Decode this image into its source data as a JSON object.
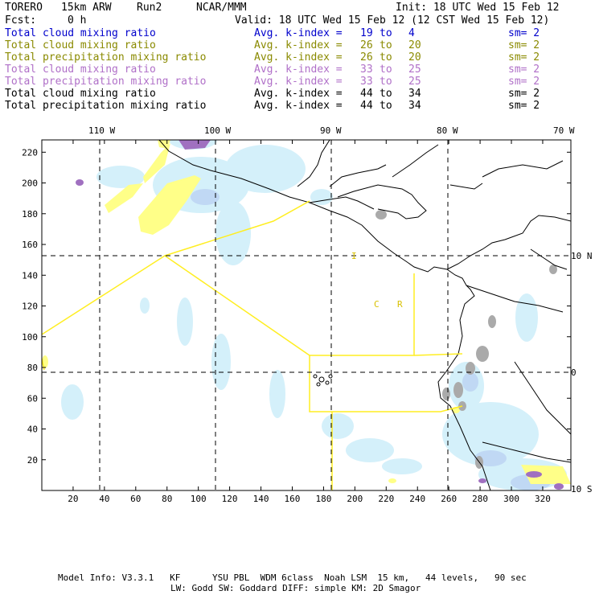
{
  "header": {
    "model": "TORERO",
    "resolution": "15km ARW",
    "run": "Run2",
    "org": "NCAR/MMM",
    "init": "Init: 18 UTC Wed 15 Feb 12",
    "fcst_label": "Fcst:",
    "fcst_value": "0 h",
    "valid": "Valid: 18 UTC Wed 15 Feb 12 (12 CST Wed 15 Feb 12)"
  },
  "legend_rows": [
    {
      "field": "Total cloud mixing ratio",
      "k": "Avg. k-index =",
      "k1": "19",
      "to": "to",
      "k2": "4",
      "sm": "sm= 2",
      "color": "#0000cc"
    },
    {
      "field": "Total cloud mixing ratio",
      "k": "Avg. k-index =",
      "k1": "26",
      "to": "to",
      "k2": "20",
      "sm": "sm= 2",
      "color": "#8a8a00"
    },
    {
      "field": "Total precipitation mixing ratio",
      "k": "Avg. k-index =",
      "k1": "26",
      "to": "to",
      "k2": "20",
      "sm": "sm= 2",
      "color": "#8a8a00"
    },
    {
      "field": "Total cloud mixing ratio",
      "k": "Avg. k-index =",
      "k1": "33",
      "to": "to",
      "k2": "25",
      "sm": "sm= 2",
      "color": "#b070c8"
    },
    {
      "field": "Total precipitation mixing ratio",
      "k": "Avg. k-index =",
      "k1": "33",
      "to": "to",
      "k2": "25",
      "sm": "sm= 2",
      "color": "#b070c8"
    },
    {
      "field": "Total cloud mixing ratio",
      "k": "Avg. k-index =",
      "k1": "44",
      "to": "to",
      "k2": "34",
      "sm": "sm= 2",
      "color": "#000000"
    },
    {
      "field": "Total precipitation mixing ratio",
      "k": "Avg. k-index =",
      "k1": "44",
      "to": "to",
      "k2": "34",
      "sm": "sm= 2",
      "color": "#000000"
    }
  ],
  "map": {
    "lon_labels": [
      "110 W",
      "100 W",
      "90 W",
      "80 W",
      "70 W"
    ],
    "lat_labels": [
      "10 N",
      "0",
      "10 S"
    ],
    "x_ticks": [
      "20",
      "40",
      "60",
      "80",
      "100",
      "120",
      "140",
      "160",
      "180",
      "200",
      "220",
      "240",
      "260",
      "280",
      "300",
      "320"
    ],
    "y_ticks": [
      "20",
      "40",
      "60",
      "80",
      "100",
      "120",
      "140",
      "160",
      "180",
      "200",
      "220"
    ],
    "annotations": [
      "I",
      "C",
      "R"
    ],
    "colors": {
      "cloud_light": "#d4f0fa",
      "cloud_mid": "#c8ddf5",
      "precip_yellow": "#ffff88",
      "purple": "#a070c0",
      "gray": "#aaaaaa",
      "boundary_yellow": "#ffee22"
    }
  },
  "footer": {
    "line1": "Model Info: V3.3.1   KF      YSU PBL  WDM 6class  Noah LSM  15 km,   44 levels,   90 sec",
    "line2": "LW: Godd SW: Goddard DIFF: simple KM: 2D Smagor"
  }
}
